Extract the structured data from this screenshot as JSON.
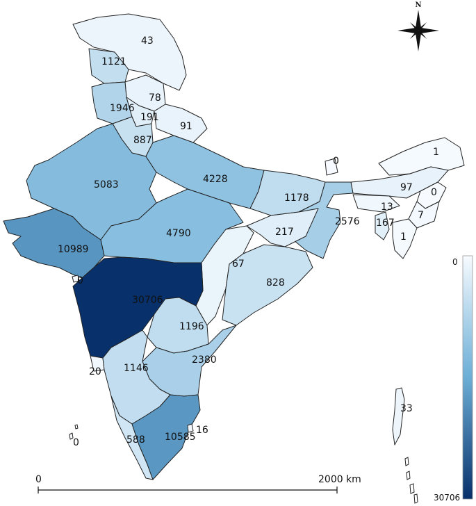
{
  "map": {
    "type": "choropleth",
    "colors": {
      "low": "#f7fbff",
      "mid": "#6baed6",
      "high": "#08306b",
      "border": "#222222"
    },
    "legend": {
      "min_label": "0",
      "max_label": "30706",
      "min": 0,
      "max": 30706
    },
    "scale": {
      "start_label": "0",
      "end_label": "2000 km"
    },
    "north": {
      "label": "N"
    },
    "regions": [
      {
        "id": "jammu-kashmir",
        "value": 43,
        "label": "43"
      },
      {
        "id": "punjab-north",
        "value": 1121,
        "label": "1121"
      },
      {
        "id": "himachal",
        "value": 78,
        "label": "78"
      },
      {
        "id": "punjab",
        "value": 1946,
        "label": "1946"
      },
      {
        "id": "haryana-north",
        "value": 191,
        "label": "191"
      },
      {
        "id": "uttarakhand",
        "value": 91,
        "label": "91"
      },
      {
        "id": "haryana",
        "value": 887,
        "label": "887"
      },
      {
        "id": "rajasthan",
        "value": 5083,
        "label": "5083"
      },
      {
        "id": "uttar-pradesh",
        "value": 4228,
        "label": "4228"
      },
      {
        "id": "bihar",
        "value": 1178,
        "label": "1178"
      },
      {
        "id": "sikkim",
        "value": 0,
        "label": "0"
      },
      {
        "id": "arunachal",
        "value": 1,
        "label": "1"
      },
      {
        "id": "assam",
        "value": 97,
        "label": "97"
      },
      {
        "id": "nagaland",
        "value": 0,
        "label": "0"
      },
      {
        "id": "meghalaya",
        "value": 13,
        "label": "13"
      },
      {
        "id": "manipur",
        "value": 7,
        "label": "7"
      },
      {
        "id": "tripura",
        "value": 167,
        "label": "167"
      },
      {
        "id": "mizoram",
        "value": 1,
        "label": "1"
      },
      {
        "id": "west-bengal",
        "value": 2576,
        "label": "2576"
      },
      {
        "id": "jharkhand",
        "value": 217,
        "label": "217"
      },
      {
        "id": "madhya-pradesh",
        "value": 4790,
        "label": "4790"
      },
      {
        "id": "gujarat",
        "value": 10989,
        "label": "10989"
      },
      {
        "id": "chhattisgarh",
        "value": 67,
        "label": "67"
      },
      {
        "id": "odisha",
        "value": 828,
        "label": "828"
      },
      {
        "id": "diu",
        "value": 0,
        "label": "0"
      },
      {
        "id": "maharashtra",
        "value": 30706,
        "label": "30706"
      },
      {
        "id": "telangana",
        "value": 1196,
        "label": "1196"
      },
      {
        "id": "andhra-pradesh",
        "value": 2380,
        "label": "2380"
      },
      {
        "id": "goa",
        "value": 20,
        "label": "20"
      },
      {
        "id": "karnataka",
        "value": 1146,
        "label": "1146"
      },
      {
        "id": "andaman",
        "value": 33,
        "label": "33"
      },
      {
        "id": "lakshadweep",
        "value": 0,
        "label": "0"
      },
      {
        "id": "kerala",
        "value": 588,
        "label": "588"
      },
      {
        "id": "tamil-nadu",
        "value": 10585,
        "label": "10585"
      },
      {
        "id": "puducherry",
        "value": 16,
        "label": "16"
      }
    ]
  }
}
